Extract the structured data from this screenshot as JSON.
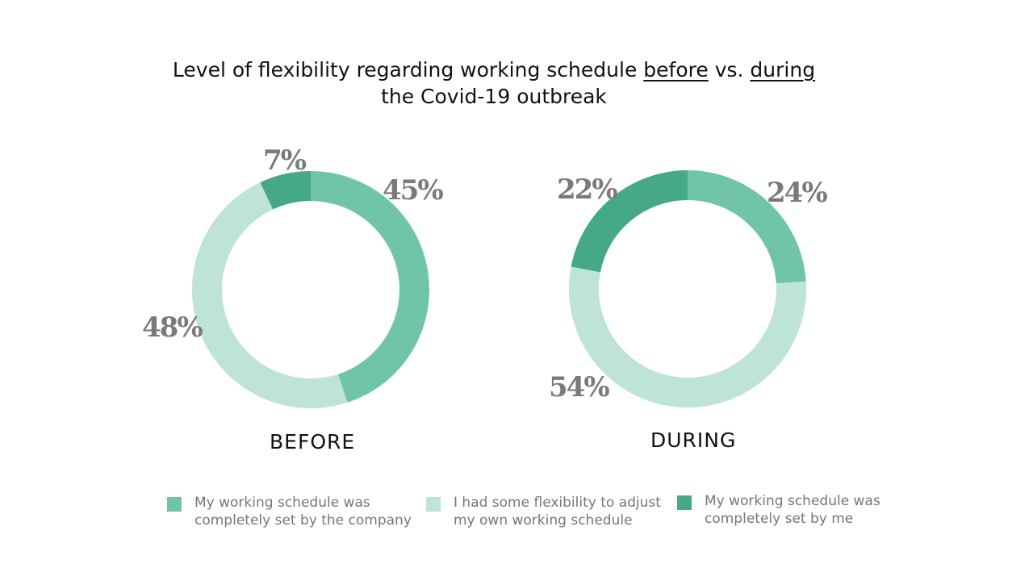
{
  "chart_data": {
    "type": "pie",
    "title": {
      "pre": "Level of flexibility regarding working schedule ",
      "before": "before",
      "mid": " vs. ",
      "during": "during",
      "line2": "the Covid-19 outbreak"
    },
    "legend": [
      {
        "label": "My working schedule was completely set by the company",
        "color": "#6fc5a6"
      },
      {
        "label": "I had some flexibility to adjust my own working schedule",
        "color": "#bee4d6"
      },
      {
        "label": "My working schedule was completely set by me",
        "color": "#45a986"
      }
    ],
    "charts": [
      {
        "caption": "BEFORE",
        "values": [
          45,
          48,
          7
        ],
        "labels": [
          "45%",
          "48%",
          "7%"
        ]
      },
      {
        "caption": "DURING",
        "values": [
          24,
          54,
          22
        ],
        "labels": [
          "24%",
          "54%",
          "22%"
        ]
      }
    ]
  }
}
